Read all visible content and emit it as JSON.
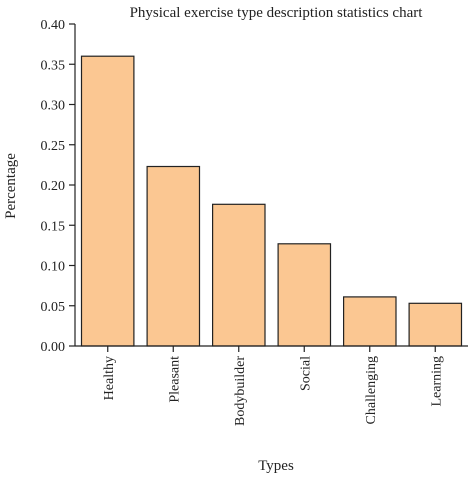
{
  "chart_data": {
    "type": "bar",
    "title": "Physical exercise type description statistics chart",
    "xlabel": "Types",
    "ylabel": "Percentage",
    "categories": [
      "Healthy",
      "Pleasant",
      "Bodybuilder",
      "Social",
      "Challenging",
      "Learning"
    ],
    "values": [
      0.36,
      0.223,
      0.176,
      0.127,
      0.061,
      0.053
    ],
    "ylim": [
      0,
      0.4
    ],
    "yticks": [
      "0.00",
      "0.05",
      "0.10",
      "0.15",
      "0.20",
      "0.25",
      "0.30",
      "0.35",
      "0.40"
    ],
    "grid": false,
    "bar_color": "#FBC792",
    "edge_color": "#222222"
  }
}
